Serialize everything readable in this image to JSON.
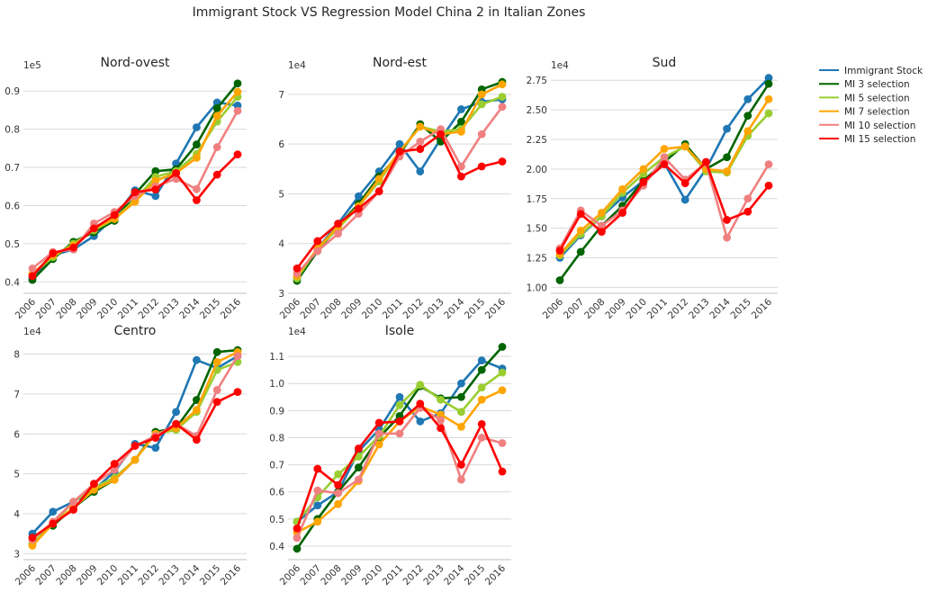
{
  "suptitle": "Immigrant Stock VS Regression Model China 2 in Italian Zones",
  "legend": {
    "placement": "right",
    "entries": [
      "Immigrant Stock",
      "MI 3 selection",
      "MI 5 selection",
      "MI 7 selection",
      "MI 10 selection",
      "MI 15 selection"
    ]
  },
  "colors": {
    "Immigrant Stock": "#1f77b4",
    "MI 3 selection": "#006400",
    "MI 5 selection": "#9acd32",
    "MI 7 selection": "#ffa500",
    "MI 10 selection": "#f08080",
    "MI 15 selection": "#ff0000"
  },
  "chart_data": [
    {
      "type": "line",
      "title": "Nord-ovest",
      "offset_label": "1e5",
      "x": [
        "2006",
        "2007",
        "2008",
        "2009",
        "2010",
        "2011",
        "2012",
        "2013",
        "2014",
        "2015",
        "2016"
      ],
      "ylim": [
        0.37,
        0.95
      ],
      "yticks": [
        0.4,
        0.5,
        0.6,
        0.7,
        0.8,
        0.9
      ],
      "ytick_labels": [
        "0.4",
        "0.5",
        "0.6",
        "0.7",
        "0.8",
        "0.9"
      ],
      "grid": "horizontal",
      "series": [
        {
          "name": "Immigrant Stock",
          "values": [
            0.41,
            0.47,
            0.485,
            0.52,
            0.57,
            0.64,
            0.625,
            0.71,
            0.805,
            0.87,
            0.862
          ]
        },
        {
          "name": "MI 3 selection",
          "values": [
            0.405,
            0.46,
            0.505,
            0.53,
            0.56,
            0.63,
            0.69,
            0.695,
            0.76,
            0.855,
            0.92
          ]
        },
        {
          "name": "MI 5 selection",
          "values": [
            0.42,
            0.465,
            0.5,
            0.535,
            0.565,
            0.615,
            0.675,
            0.69,
            0.735,
            0.82,
            0.885
          ]
        },
        {
          "name": "MI 7 selection",
          "values": [
            0.42,
            0.47,
            0.495,
            0.54,
            0.565,
            0.61,
            0.665,
            0.685,
            0.725,
            0.835,
            0.898
          ]
        },
        {
          "name": "MI 10 selection",
          "values": [
            0.435,
            0.478,
            0.485,
            0.553,
            0.583,
            0.625,
            0.65,
            0.67,
            0.643,
            0.753,
            0.848
          ]
        },
        {
          "name": "MI 15 selection",
          "values": [
            0.415,
            0.475,
            0.49,
            0.54,
            0.575,
            0.635,
            0.642,
            0.685,
            0.614,
            0.681,
            0.734
          ]
        }
      ]
    },
    {
      "type": "line",
      "title": "Nord-est",
      "offset_label": "1e4",
      "x": [
        "2006",
        "2007",
        "2008",
        "2009",
        "2010",
        "2011",
        "2012",
        "2013",
        "2014",
        "2015",
        "2016"
      ],
      "ylim": [
        3.0,
        7.45
      ],
      "yticks": [
        3,
        4,
        5,
        6,
        7
      ],
      "ytick_labels": [
        "3",
        "4",
        "5",
        "6",
        "7"
      ],
      "grid": "horizontal",
      "series": [
        {
          "name": "Immigrant Stock",
          "values": [
            3.3,
            3.9,
            4.4,
            4.95,
            5.45,
            6.0,
            5.45,
            6.1,
            6.7,
            6.85,
            6.9
          ]
        },
        {
          "name": "MI 3 selection",
          "values": [
            3.25,
            3.85,
            4.35,
            4.8,
            5.35,
            5.8,
            6.4,
            6.05,
            6.45,
            7.1,
            7.25
          ]
        },
        {
          "name": "MI 5 selection",
          "values": [
            3.3,
            3.9,
            4.3,
            4.75,
            5.25,
            5.85,
            6.35,
            6.25,
            6.3,
            6.8,
            6.95
          ]
        },
        {
          "name": "MI 7 selection",
          "values": [
            3.35,
            3.9,
            4.35,
            4.75,
            5.3,
            5.85,
            6.35,
            6.2,
            6.25,
            7.0,
            7.2
          ]
        },
        {
          "name": "MI 10 selection",
          "values": [
            3.4,
            3.85,
            4.2,
            4.6,
            5.05,
            5.75,
            6.05,
            6.3,
            5.55,
            6.2,
            6.75
          ]
        },
        {
          "name": "MI 15 selection",
          "values": [
            3.5,
            4.05,
            4.4,
            4.7,
            5.05,
            5.85,
            5.9,
            6.2,
            5.35,
            5.55,
            5.65
          ]
        }
      ]
    },
    {
      "type": "line",
      "title": "Sud",
      "offset_label": "1e4",
      "x": [
        "2006",
        "2007",
        "2008",
        "2009",
        "2010",
        "2011",
        "2012",
        "2013",
        "2014",
        "2015",
        "2016"
      ],
      "ylim": [
        0.95,
        2.82
      ],
      "yticks": [
        1.0,
        1.25,
        1.5,
        1.75,
        2.0,
        2.25,
        2.5,
        2.75
      ],
      "ytick_labels": [
        "1.00",
        "1.25",
        "1.50",
        "1.75",
        "2.00",
        "2.25",
        "2.50",
        "2.75"
      ],
      "grid": "horizontal",
      "series": [
        {
          "name": "Immigrant Stock",
          "values": [
            1.25,
            1.44,
            1.6,
            1.76,
            1.9,
            2.05,
            1.74,
            2.0,
            2.34,
            2.59,
            2.77
          ]
        },
        {
          "name": "MI 3 selection",
          "values": [
            1.06,
            1.3,
            1.52,
            1.69,
            1.9,
            2.06,
            2.21,
            2.0,
            2.1,
            2.45,
            2.72
          ]
        },
        {
          "name": "MI 5 selection",
          "values": [
            1.27,
            1.45,
            1.6,
            1.8,
            1.96,
            2.1,
            2.19,
            1.98,
            1.97,
            2.28,
            2.47
          ]
        },
        {
          "name": "MI 7 selection",
          "values": [
            1.28,
            1.48,
            1.63,
            1.83,
            2.0,
            2.17,
            2.19,
            2.0,
            1.98,
            2.32,
            2.59
          ]
        },
        {
          "name": "MI 10 selection",
          "values": [
            1.33,
            1.65,
            1.52,
            1.65,
            1.86,
            2.1,
            1.91,
            2.05,
            1.42,
            1.75,
            2.04
          ]
        },
        {
          "name": "MI 15 selection",
          "values": [
            1.31,
            1.62,
            1.47,
            1.63,
            1.89,
            2.04,
            1.88,
            2.06,
            1.57,
            1.64,
            1.86
          ]
        }
      ]
    },
    {
      "type": "line",
      "title": "Centro",
      "offset_label": "1e4",
      "x": [
        "2006",
        "2007",
        "2008",
        "2009",
        "2010",
        "2011",
        "2012",
        "2013",
        "2014",
        "2015",
        "2016"
      ],
      "ylim": [
        2.85,
        8.35
      ],
      "yticks": [
        3,
        4,
        5,
        6,
        7,
        8
      ],
      "ytick_labels": [
        "3",
        "4",
        "5",
        "6",
        "7",
        "8"
      ],
      "grid": "horizontal",
      "series": [
        {
          "name": "Immigrant Stock",
          "values": [
            3.5,
            4.05,
            4.3,
            4.6,
            5.05,
            5.75,
            5.65,
            6.55,
            7.85,
            7.65,
            7.95
          ]
        },
        {
          "name": "MI 3 selection",
          "values": [
            3.4,
            3.7,
            4.15,
            4.55,
            4.85,
            5.35,
            6.05,
            6.15,
            6.85,
            8.05,
            8.1
          ]
        },
        {
          "name": "MI 5 selection",
          "values": [
            3.25,
            3.75,
            4.3,
            4.65,
            4.9,
            5.35,
            6.0,
            6.1,
            6.55,
            7.6,
            7.8
          ]
        },
        {
          "name": "MI 7 selection",
          "values": [
            3.2,
            3.75,
            4.15,
            4.6,
            4.85,
            5.35,
            6.0,
            6.15,
            6.6,
            7.8,
            8.05
          ]
        },
        {
          "name": "MI 10 selection",
          "values": [
            3.35,
            3.8,
            4.3,
            4.75,
            5.1,
            5.7,
            5.95,
            6.25,
            5.95,
            7.1,
            7.95
          ]
        },
        {
          "name": "MI 15 selection",
          "values": [
            3.4,
            3.75,
            4.1,
            4.75,
            5.25,
            5.7,
            5.9,
            6.25,
            5.85,
            6.8,
            7.05
          ]
        }
      ]
    },
    {
      "type": "line",
      "title": "Isole",
      "offset_label": "1e4",
      "x": [
        "2006",
        "2007",
        "2008",
        "2009",
        "2010",
        "2011",
        "2012",
        "2013",
        "2014",
        "2015",
        "2016"
      ],
      "ylim": [
        0.35,
        1.16
      ],
      "yticks": [
        0.4,
        0.5,
        0.6,
        0.7,
        0.8,
        0.9,
        1.0,
        1.1
      ],
      "ytick_labels": [
        "0.4",
        "0.5",
        "0.6",
        "0.7",
        "0.8",
        "0.9",
        "1.0",
        "1.1"
      ],
      "grid": "horizontal",
      "series": [
        {
          "name": "Immigrant Stock",
          "values": [
            0.49,
            0.55,
            0.6,
            0.75,
            0.83,
            0.95,
            0.86,
            0.89,
            1.0,
            1.085,
            1.055
          ]
        },
        {
          "name": "MI 3 selection",
          "values": [
            0.39,
            0.5,
            0.6,
            0.69,
            0.8,
            0.88,
            0.99,
            0.945,
            0.95,
            1.05,
            1.135
          ]
        },
        {
          "name": "MI 5 selection",
          "values": [
            0.49,
            0.58,
            0.665,
            0.73,
            0.805,
            0.92,
            0.995,
            0.94,
            0.895,
            0.985,
            1.04
          ]
        },
        {
          "name": "MI 7 selection",
          "values": [
            0.45,
            0.49,
            0.555,
            0.64,
            0.775,
            0.86,
            0.915,
            0.885,
            0.84,
            0.94,
            0.975
          ]
        },
        {
          "name": "MI 10 selection",
          "values": [
            0.43,
            0.605,
            0.595,
            0.645,
            0.815,
            0.815,
            0.91,
            0.865,
            0.645,
            0.8,
            0.78
          ]
        },
        {
          "name": "MI 15 selection",
          "values": [
            0.465,
            0.685,
            0.625,
            0.76,
            0.855,
            0.86,
            0.925,
            0.835,
            0.7,
            0.85,
            0.675
          ]
        }
      ]
    }
  ]
}
